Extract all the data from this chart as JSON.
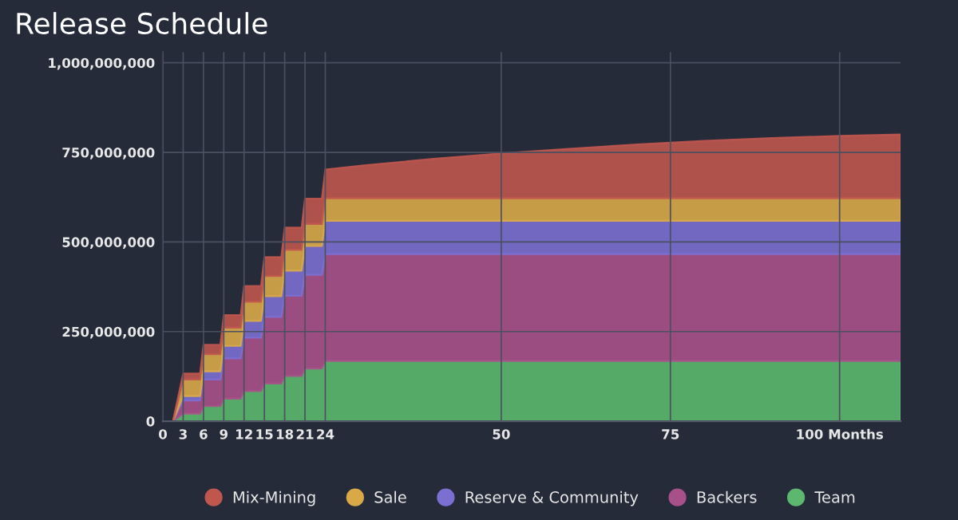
{
  "chart_data": {
    "type": "area",
    "title": "Release Schedule",
    "stacked": true,
    "x": [
      0,
      1.5,
      3,
      5.5,
      6,
      8.5,
      9,
      11.5,
      12,
      14.5,
      15,
      17.5,
      18,
      20.5,
      21,
      23.5,
      24,
      30,
      40,
      50,
      60,
      70,
      80,
      90,
      100,
      109
    ],
    "series": [
      {
        "name": "Team",
        "color": "#5cb86e",
        "values": [
          0,
          0,
          21000000,
          21000000,
          42000000,
          42000000,
          63000000,
          63000000,
          84000000,
          84000000,
          105000000,
          105000000,
          126000000,
          126000000,
          147000000,
          147000000,
          168000000,
          168000000,
          168000000,
          168000000,
          168000000,
          168000000,
          168000000,
          168000000,
          168000000,
          168000000
        ]
      },
      {
        "name": "Backers",
        "color": "#a8508a",
        "values": [
          0,
          0,
          37000000,
          37000000,
          74000000,
          74000000,
          112000000,
          112000000,
          149000000,
          149000000,
          186000000,
          186000000,
          224000000,
          224000000,
          261000000,
          261000000,
          298000000,
          298000000,
          298000000,
          298000000,
          298000000,
          298000000,
          298000000,
          298000000,
          298000000,
          298000000
        ]
      },
      {
        "name": "Reserve & Community",
        "color": "#7b6fd1",
        "values": [
          0,
          0,
          12000000,
          12000000,
          23000000,
          23000000,
          35000000,
          35000000,
          47000000,
          47000000,
          58000000,
          58000000,
          70000000,
          70000000,
          81000000,
          81000000,
          93000000,
          93000000,
          93000000,
          93000000,
          93000000,
          93000000,
          93000000,
          93000000,
          93000000,
          93000000
        ]
      },
      {
        "name": "Sale",
        "color": "#d9a948",
        "values": [
          0,
          0,
          46000000,
          46000000,
          48000000,
          48000000,
          51000000,
          51000000,
          53000000,
          53000000,
          56000000,
          56000000,
          58000000,
          58000000,
          61000000,
          61000000,
          63000000,
          63000000,
          63000000,
          63000000,
          63000000,
          63000000,
          63000000,
          63000000,
          63000000,
          63000000
        ]
      },
      {
        "name": "Mix-Mining",
        "color": "#c0574f",
        "values": [
          0,
          0,
          17000000,
          17000000,
          26000000,
          26000000,
          35000000,
          35000000,
          44000000,
          44000000,
          53000000,
          53000000,
          62000000,
          62000000,
          71000000,
          71000000,
          80000000,
          92000000,
          110000000,
          125000000,
          138000000,
          150000000,
          160000000,
          168000000,
          174000000,
          178000000
        ]
      }
    ],
    "xlim": [
      0,
      109
    ],
    "xticks": [
      0,
      3,
      6,
      9,
      12,
      15,
      18,
      21,
      24,
      50,
      75,
      {
        "value": 100,
        "label": "100 Months"
      }
    ],
    "ylim": [
      0,
      1030000000
    ],
    "yticks": [
      {
        "value": 0,
        "label": "0"
      },
      {
        "value": 250000000,
        "label": "250,000,000"
      },
      {
        "value": 500000000,
        "label": "500,000,000"
      },
      {
        "value": 750000000,
        "label": "750,000,000"
      },
      {
        "value": 1000000000,
        "label": "1,000,000,000"
      }
    ],
    "grid": true,
    "legend": "bottom"
  }
}
